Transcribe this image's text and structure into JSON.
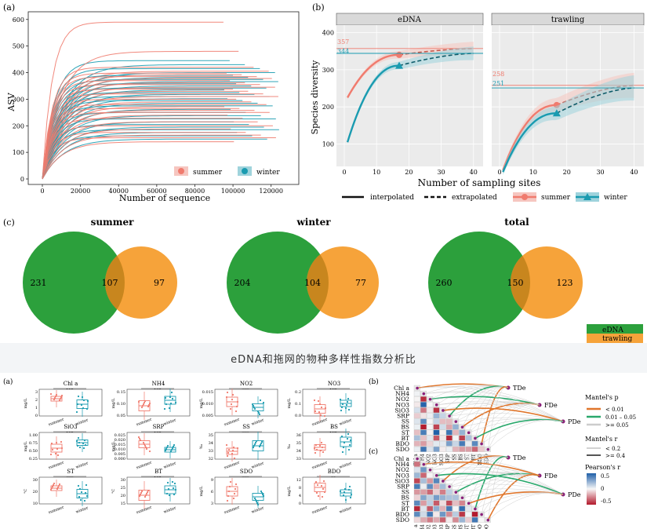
{
  "caption": "eDNA和拖网的物种多样性指数分析比",
  "colors": {
    "summer": "#f07b6e",
    "winter": "#1a9bb0",
    "edna": "#2ca03c",
    "trawling": "#f6a33a",
    "overlap": "#c8861e",
    "panel_bg": "#ebebeb"
  },
  "chart_data": [
    {
      "type": "line",
      "panel": "(a)",
      "xlabel": "Number of sequence",
      "ylabel": "ASV",
      "x_ticks": [
        "0",
        "20000",
        "40000",
        "60000",
        "80000",
        "100000",
        "120000"
      ],
      "y_ticks": [
        "0",
        "100",
        "200",
        "300",
        "400",
        "500",
        "600"
      ],
      "xlim": [
        0,
        130000
      ],
      "ylim": [
        0,
        620
      ],
      "legend": [
        "summer",
        "winter"
      ],
      "series": [
        {
          "name": "summer",
          "plateaus": [
            590,
            480,
            420,
            405,
            398,
            392,
            385,
            378,
            370,
            362,
            355,
            345,
            338,
            330,
            320,
            310,
            300,
            290,
            280,
            272,
            265,
            258,
            250,
            240,
            228,
            215,
            200,
            188,
            175,
            165,
            155,
            140
          ]
        },
        {
          "name": "winter",
          "plateaus": [
            445,
            430,
            415,
            400,
            390,
            382,
            374,
            366,
            358,
            350,
            342,
            335,
            325,
            318,
            310,
            302,
            295,
            285,
            275,
            262,
            250,
            238,
            226,
            215,
            205,
            195,
            185,
            175,
            162,
            150
          ]
        }
      ]
    },
    {
      "type": "line",
      "panel": "(b)",
      "facets": [
        "eDNA",
        "trawling"
      ],
      "xlabel": "Number of sampling sites",
      "ylabel": "Species diversity",
      "x_ticks": [
        "0",
        "10",
        "20",
        "30",
        "40"
      ],
      "y_ticks": [
        "100",
        "200",
        "300",
        "400"
      ],
      "xlim": [
        0,
        42
      ],
      "ylim": [
        40,
        420
      ],
      "legend": [
        "interpolated",
        "extrapolated",
        "summer",
        "winter"
      ],
      "reference_labels": {
        "eDNA": [
          "357",
          "344"
        ],
        "trawling": [
          "258",
          "251"
        ]
      },
      "series": [
        {
          "facet": "eDNA",
          "name": "summer",
          "start": [
            1,
            225
          ],
          "observed": [
            17,
            340
          ],
          "end": [
            40,
            357
          ]
        },
        {
          "facet": "eDNA",
          "name": "winter",
          "start": [
            1,
            105
          ],
          "observed": [
            17,
            311
          ],
          "end": [
            40,
            344
          ]
        },
        {
          "facet": "trawling",
          "name": "summer",
          "start": [
            1,
            30
          ],
          "observed": [
            17,
            205
          ],
          "end": [
            40,
            258
          ]
        },
        {
          "facet": "trawling",
          "name": "winter",
          "start": [
            1,
            25
          ],
          "observed": [
            17,
            183
          ],
          "end": [
            40,
            251
          ]
        }
      ]
    },
    {
      "type": "venn",
      "panel": "(c)",
      "groups": [
        {
          "title": "summer",
          "edna_only": 231,
          "shared": 107,
          "trawling_only": 97
        },
        {
          "title": "winter",
          "edna_only": 204,
          "shared": 104,
          "trawling_only": 77
        },
        {
          "title": "total",
          "edna_only": 260,
          "shared": 150,
          "trawling_only": 123
        }
      ],
      "legend": [
        "eDNA",
        "trawling"
      ]
    },
    {
      "type": "box",
      "panel": "(a)",
      "categories": [
        "summer",
        "winter"
      ],
      "facets": [
        {
          "label": "Chl a",
          "sig": "NS",
          "ylabel": "mg/L",
          "ticks": [
            "0",
            "1",
            "2",
            "3"
          ]
        },
        {
          "label": "NH4",
          "sig": "NS",
          "ylabel": "mg/L",
          "ticks": [
            "0.05",
            "0.10",
            "0.15"
          ]
        },
        {
          "label": "NO2",
          "sig": "***",
          "ylabel": "mg/L",
          "ticks": [
            "0.005",
            "0.010",
            "0.015"
          ]
        },
        {
          "label": "NO3",
          "sig": "NS",
          "ylabel": "mg/L",
          "ticks": [
            "0.0",
            "0.1",
            "0.2"
          ]
        },
        {
          "label": "SiO3",
          "sig": "NS",
          "ylabel": "mg/L",
          "ticks": [
            "0.25",
            "0.50",
            "0.75",
            "1.00"
          ]
        },
        {
          "label": "SRP",
          "sig": "NS",
          "ylabel": "mg/L",
          "ticks": [
            "0.000",
            "0.005",
            "0.010",
            "0.015",
            "0.020",
            "0.025"
          ]
        },
        {
          "label": "SS",
          "sig": "***",
          "ylabel": "‰",
          "ticks": [
            "32",
            "33",
            "34",
            "35"
          ]
        },
        {
          "label": "BS",
          "sig": "NS",
          "ylabel": "‰",
          "ticks": [
            "33",
            "34",
            "35",
            "36"
          ]
        },
        {
          "label": "ST",
          "sig": "***",
          "ylabel": "°C",
          "ticks": [
            "10",
            "20",
            "30"
          ]
        },
        {
          "label": "BT",
          "sig": "NS",
          "ylabel": "°C",
          "ticks": [
            "15",
            "20",
            "25",
            "30"
          ]
        },
        {
          "label": "SDO",
          "sig": "***",
          "ylabel": "mg/L",
          "ticks": [
            "3",
            "6",
            "9"
          ]
        },
        {
          "label": "BDO",
          "sig": "**",
          "ylabel": "mg/L",
          "ticks": [
            "0",
            "4",
            "8",
            "12"
          ]
        }
      ]
    },
    {
      "type": "heatmap",
      "panels": [
        "(b)",
        "(c)"
      ],
      "variables": [
        "Chl a",
        "NH4",
        "NO2",
        "NO3",
        "SiO3",
        "SRP",
        "SS",
        "BS",
        "ST",
        "BT",
        "BDO",
        "SDO"
      ],
      "targets_b": [
        "TDe",
        "FDe",
        "PDe"
      ],
      "targets_c": [
        "TDe",
        "FDe",
        "PDe"
      ],
      "legend": {
        "mantel_p_title": "Mantel's p",
        "mantel_p": [
          "< 0.01",
          "0.01 – 0.05",
          ">= 0.05"
        ],
        "mantel_r_title": "Mantel's r",
        "mantel_r": [
          "< 0.2",
          ">= 0.4"
        ],
        "pearson_title": "Pearson's r",
        "pearson_ticks": [
          "0.5",
          "0",
          "-0.5"
        ]
      }
    }
  ]
}
